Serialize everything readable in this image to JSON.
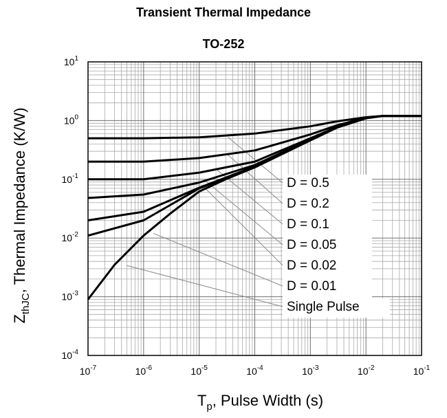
{
  "chart_data": {
    "type": "line",
    "title": "Transient Thermal Impedance",
    "subtitle": "TO-252",
    "xlabel": {
      "main": "T",
      "sub": "p",
      "rest": ", Pulse Width (s)"
    },
    "ylabel": {
      "main": "Z",
      "sub": "thJC",
      "rest": ", Thermal Impedance (K/W)"
    },
    "x_scale": "log",
    "y_scale": "log",
    "xlim": [
      1e-07,
      0.1
    ],
    "ylim": [
      0.0001,
      10
    ],
    "grid": true,
    "x_ticks": [
      {
        "base": "10",
        "exp": "-7",
        "value": 1e-07
      },
      {
        "base": "10",
        "exp": "-6",
        "value": 1e-06
      },
      {
        "base": "10",
        "exp": "-5",
        "value": 1e-05
      },
      {
        "base": "10",
        "exp": "-4",
        "value": 0.0001
      },
      {
        "base": "10",
        "exp": "-3",
        "value": 0.001
      },
      {
        "base": "10",
        "exp": "-2",
        "value": 0.01
      },
      {
        "base": "10",
        "exp": "-1",
        "value": 0.1
      }
    ],
    "y_ticks": [
      {
        "base": "10",
        "exp": "1",
        "value": 10
      },
      {
        "base": "10",
        "exp": "0",
        "value": 1
      },
      {
        "base": "10",
        "exp": "-1",
        "value": 0.1
      },
      {
        "base": "10",
        "exp": "-2",
        "value": 0.01
      },
      {
        "base": "10",
        "exp": "-3",
        "value": 0.001
      },
      {
        "base": "10",
        "exp": "-4",
        "value": 0.0001
      }
    ],
    "series": [
      {
        "name": "D = 0.5",
        "x": [
          1e-07,
          1e-06,
          1e-05,
          0.0001,
          0.001,
          0.003,
          0.01,
          0.02,
          0.1
        ],
        "y": [
          0.5,
          0.5,
          0.52,
          0.6,
          0.8,
          0.97,
          1.14,
          1.2,
          1.2
        ],
        "leader_to": [
          3.3e-05,
          0.52
        ]
      },
      {
        "name": "D = 0.2",
        "x": [
          1e-07,
          1e-06,
          1e-05,
          0.0001,
          0.001,
          0.003,
          0.01,
          0.02,
          0.1
        ],
        "y": [
          0.2,
          0.2,
          0.23,
          0.31,
          0.58,
          0.83,
          1.12,
          1.2,
          1.2
        ],
        "leader_to": [
          3.3e-05,
          0.26
        ]
      },
      {
        "name": "D = 0.1",
        "x": [
          1e-07,
          1e-06,
          1e-05,
          0.0001,
          0.001,
          0.003,
          0.01,
          0.02,
          0.1
        ],
        "y": [
          0.1,
          0.1,
          0.13,
          0.2,
          0.5,
          0.78,
          1.1,
          1.2,
          1.2
        ],
        "leader_to": [
          2e-05,
          0.15
        ]
      },
      {
        "name": "D = 0.05",
        "x": [
          1e-07,
          1e-06,
          1e-05,
          0.0001,
          0.001,
          0.003,
          0.01,
          0.02,
          0.1
        ],
        "y": [
          0.048,
          0.055,
          0.088,
          0.175,
          0.48,
          0.77,
          1.1,
          1.2,
          1.2
        ],
        "leader_to": [
          1.2e-05,
          0.1
        ]
      },
      {
        "name": "D = 0.02",
        "x": [
          1e-07,
          1e-06,
          1e-05,
          0.0001,
          0.001,
          0.003,
          0.01,
          0.02,
          0.1
        ],
        "y": [
          0.02,
          0.028,
          0.072,
          0.165,
          0.47,
          0.76,
          1.1,
          1.2,
          1.2
        ],
        "leader_to": [
          1.2e-05,
          0.075
        ]
      },
      {
        "name": "D = 0.01",
        "x": [
          1e-07,
          1e-06,
          1e-05,
          0.0001,
          0.001,
          0.003,
          0.01,
          0.02,
          0.1
        ],
        "y": [
          0.011,
          0.02,
          0.07,
          0.16,
          0.46,
          0.76,
          1.1,
          1.2,
          1.2
        ],
        "leader_to": [
          1.5e-06,
          0.012
        ]
      },
      {
        "name": "Single Pulse",
        "x": [
          1e-07,
          3e-07,
          1e-06,
          3e-06,
          1e-05,
          3e-05,
          0.0001,
          0.0003,
          0.001,
          0.003,
          0.01,
          0.02,
          0.1
        ],
        "y": [
          0.0009,
          0.0035,
          0.011,
          0.026,
          0.062,
          0.1,
          0.16,
          0.27,
          0.46,
          0.76,
          1.1,
          1.2,
          1.2
        ],
        "leader_to": [
          5e-07,
          0.0034
        ]
      }
    ]
  }
}
